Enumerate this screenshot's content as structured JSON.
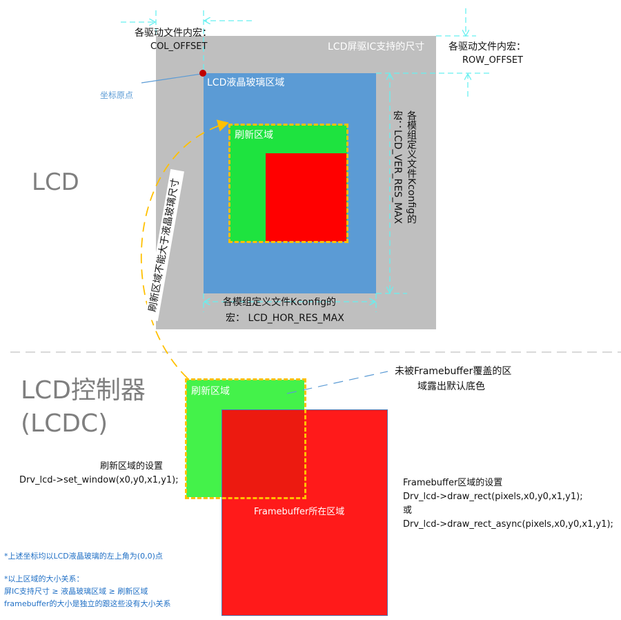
{
  "colors": {
    "ic": "#bfbfbf",
    "glass": "#5b9bd5",
    "refresh_top": "#1ee33f",
    "refresh_bottom": "#44f24a",
    "framebuffer": "#ff1a1a",
    "overlap": "#ec1a10",
    "dash": "#ffc000",
    "dimension": "#66f0f0",
    "note": "#1f6fc5",
    "origin": "#c00000"
  },
  "lcd": {
    "title": "LCD",
    "col_offset_l1": "各驱动文件内宏：",
    "col_offset_l2": "COL_OFFSET",
    "row_offset_l1": "各驱动文件内宏：",
    "row_offset_l2": "ROW_OFFSET",
    "ic_size": "LCD屏驱IC支持的尺寸",
    "origin": "坐标原点",
    "glass": "LCD液晶玻璃区域",
    "refresh": "刷新区域",
    "ver_l1": "各模组定义文件Kconfig的",
    "ver_l2": "宏：LCD_VER_RES_MAX",
    "hor_l1": "各模组定义文件Kconfig的",
    "hor_l2": "宏：  LCD_HOR_RES_MAX",
    "constraint": "刷新区域不能大于液晶玻璃尺寸"
  },
  "lcdc": {
    "title_l1": "LCD控制器",
    "title_l2": "(LCDC)",
    "refresh": "刷新区域",
    "framebuffer": "Framebuffer所在区域",
    "uncovered_l1": "未被Framebuffer覆盖的区",
    "uncovered_l2": "域露出默认底色",
    "window_l1": "刷新区域的设置",
    "window_l2": "Drv_lcd->set_window(x0,y0,x1,y1);",
    "fb_l1": "Framebuffer区域的设置",
    "fb_l2": "Drv_lcd->draw_rect(pixels,x0,y0,x1,y1);",
    "fb_l3": "或",
    "fb_l4": "Drv_lcd->draw_rect_async(pixels,x0,y0,x1,y1);"
  },
  "notes": {
    "n1": "*上述坐标均以LCD液晶玻璃的左上角为(0,0)点",
    "n2": "*以上区域的大小关系：",
    "n3": "屏IC支持尺寸 ≥ 液晶玻璃区域 ≥ 刷新区域",
    "n4": "framebuffer的大小是独立的跟这些没有大小关系"
  }
}
